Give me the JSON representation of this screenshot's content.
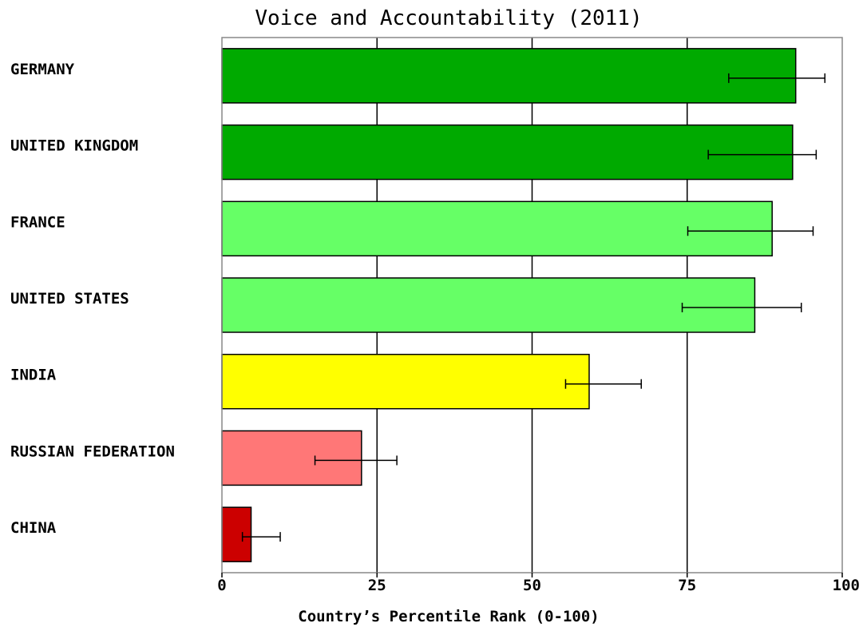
{
  "chart_data": {
    "type": "bar",
    "orientation": "horizontal",
    "title": "Voice and Accountability (2011)",
    "xlabel": "Country’s Percentile Rank (0-100)",
    "ylabel": "",
    "xlim": [
      0,
      100
    ],
    "xticks": [
      0,
      25,
      50,
      75,
      100
    ],
    "grid": true,
    "categories": [
      "GERMANY",
      "UNITED KINGDOM",
      "FRANCE",
      "UNITED STATES",
      "INDIA",
      "RUSSIAN FEDERATION",
      "CHINA"
    ],
    "values": [
      92.5,
      92.0,
      88.7,
      85.9,
      59.2,
      22.5,
      4.7
    ],
    "error_low": [
      81.7,
      78.4,
      75.1,
      74.2,
      55.4,
      15.0,
      3.3
    ],
    "error_high": [
      97.2,
      95.8,
      95.3,
      93.4,
      67.6,
      28.2,
      9.4
    ],
    "bar_colors": [
      "#00aa00",
      "#00aa00",
      "#66ff66",
      "#66ff66",
      "#ffff00",
      "#ff7777",
      "#cc0000"
    ]
  }
}
